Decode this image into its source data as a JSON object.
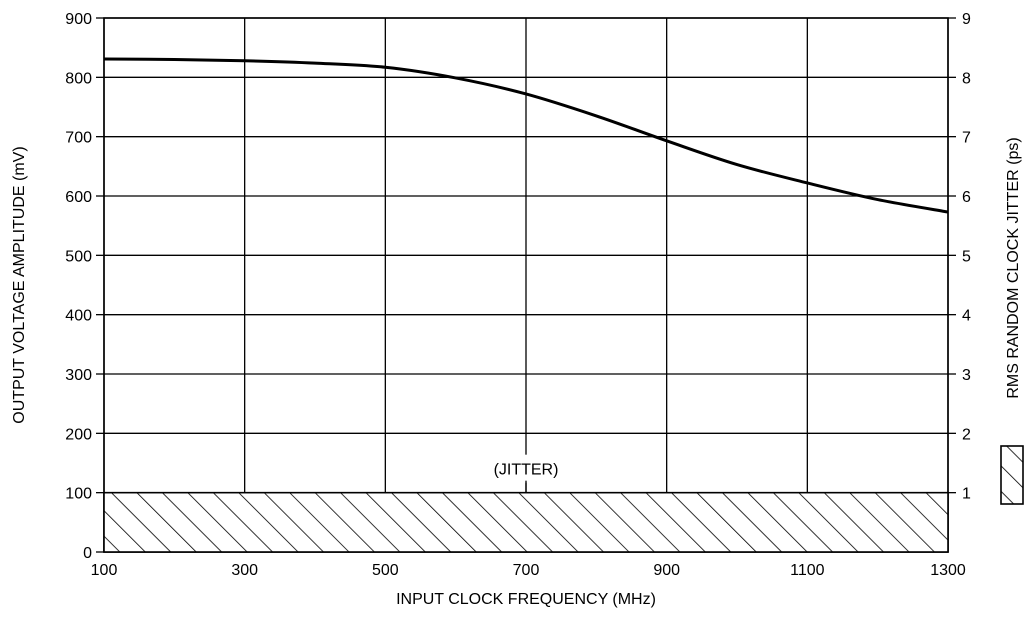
{
  "chart_data": {
    "type": "line",
    "xlabel": "INPUT CLOCK FREQUENCY (MHz)",
    "ylabel": "OUTPUT VOLTAGE AMPLITUDE (mV)",
    "y2label": "RMS RANDOM CLOCK JITTER (ps)",
    "xlim": [
      100,
      1300
    ],
    "ylim": [
      0,
      900
    ],
    "y2lim": [
      0,
      9
    ],
    "x_ticks": [
      "100",
      "300",
      "500",
      "700",
      "900",
      "1100",
      "1300"
    ],
    "y_ticks": [
      "0",
      "100",
      "200",
      "300",
      "400",
      "500",
      "600",
      "700",
      "800",
      "900"
    ],
    "y2_ticks": [
      "1",
      "2",
      "3",
      "4",
      "5",
      "6",
      "7",
      "8",
      "9"
    ],
    "grid": true,
    "series": [
      {
        "x": [
          100,
          200,
          300,
          400,
          500,
          600,
          700,
          800,
          900,
          1000,
          1100,
          1200,
          1300
        ],
        "y": [
          831,
          830,
          828,
          824,
          817,
          799,
          772,
          735,
          693,
          653,
          622,
          594,
          573
        ]
      }
    ],
    "jitter_band": {
      "y_max": 100,
      "label": "(JITTER)"
    }
  }
}
